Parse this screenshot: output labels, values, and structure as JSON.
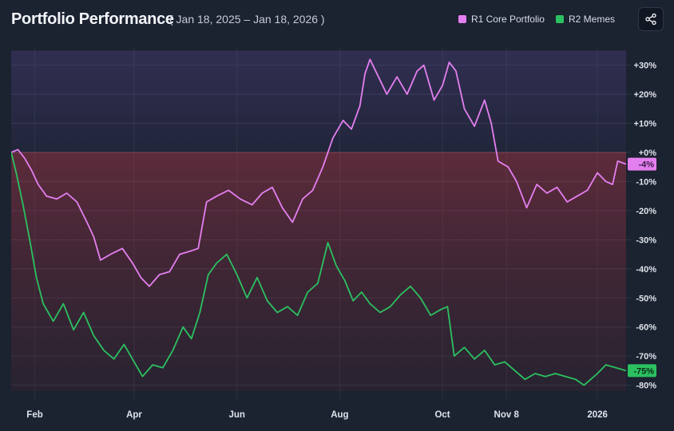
{
  "header": {
    "title": "Portfolio Performance",
    "date_range": "( Jan 18, 2025 – Jan 18, 2026 )",
    "share_icon": "share-icon"
  },
  "chart_data": {
    "type": "line",
    "title": "Portfolio Performance",
    "subtitle": "( Jan 18, 2025 – Jan 18, 2026 )",
    "x_range": [
      "2025-01-18",
      "2026-01-18"
    ],
    "ylim": [
      -82,
      35
    ],
    "y_unit": "%",
    "y_ticks": [
      30,
      20,
      10,
      0,
      -10,
      -20,
      -30,
      -40,
      -50,
      -60,
      -70,
      -80
    ],
    "y_tick_labels": [
      "+30%",
      "+20%",
      "+10%",
      "+0%",
      "-10%",
      "-20%",
      "-30%",
      "-40%",
      "-50%",
      "-60%",
      "-70%",
      "-80%"
    ],
    "x_ticks": [
      "2025-02-01",
      "2025-04-01",
      "2025-06-01",
      "2025-08-01",
      "2025-10-01",
      "2025-11-08",
      "2026-01-01"
    ],
    "x_tick_labels": [
      "Feb",
      "Apr",
      "Jun",
      "Aug",
      "Oct",
      "Nov 8",
      "2026"
    ],
    "grid": true,
    "legend_position": "top-right",
    "series": [
      {
        "name": "R1 Core Portfolio",
        "color": "#e47ff0",
        "end_label": "-4%",
        "points": [
          [
            "2025-01-18",
            0
          ],
          [
            "2025-01-22",
            1
          ],
          [
            "2025-01-26",
            -2
          ],
          [
            "2025-01-30",
            -6
          ],
          [
            "2025-02-03",
            -11
          ],
          [
            "2025-02-08",
            -15
          ],
          [
            "2025-02-14",
            -16
          ],
          [
            "2025-02-20",
            -14
          ],
          [
            "2025-02-26",
            -17
          ],
          [
            "2025-03-04",
            -24
          ],
          [
            "2025-03-08",
            -29
          ],
          [
            "2025-03-12",
            -37
          ],
          [
            "2025-03-18",
            -35
          ],
          [
            "2025-03-25",
            -33
          ],
          [
            "2025-03-31",
            -38
          ],
          [
            "2025-04-05",
            -43
          ],
          [
            "2025-04-10",
            -46
          ],
          [
            "2025-04-16",
            -42
          ],
          [
            "2025-04-22",
            -41
          ],
          [
            "2025-04-28",
            -35
          ],
          [
            "2025-05-04",
            -34
          ],
          [
            "2025-05-09",
            -33
          ],
          [
            "2025-05-14",
            -17
          ],
          [
            "2025-05-20",
            -15
          ],
          [
            "2025-05-27",
            -13
          ],
          [
            "2025-06-03",
            -16
          ],
          [
            "2025-06-10",
            -18
          ],
          [
            "2025-06-16",
            -14
          ],
          [
            "2025-06-22",
            -12
          ],
          [
            "2025-06-28",
            -19
          ],
          [
            "2025-07-04",
            -24
          ],
          [
            "2025-07-10",
            -16
          ],
          [
            "2025-07-16",
            -13
          ],
          [
            "2025-07-22",
            -5
          ],
          [
            "2025-07-28",
            5
          ],
          [
            "2025-08-03",
            11
          ],
          [
            "2025-08-08",
            8
          ],
          [
            "2025-08-13",
            16
          ],
          [
            "2025-08-16",
            27
          ],
          [
            "2025-08-19",
            32
          ],
          [
            "2025-08-24",
            26
          ],
          [
            "2025-08-29",
            20
          ],
          [
            "2025-09-04",
            26
          ],
          [
            "2025-09-10",
            20
          ],
          [
            "2025-09-16",
            28
          ],
          [
            "2025-09-20",
            30
          ],
          [
            "2025-09-26",
            18
          ],
          [
            "2025-10-01",
            23
          ],
          [
            "2025-10-05",
            31
          ],
          [
            "2025-10-09",
            28
          ],
          [
            "2025-10-14",
            15
          ],
          [
            "2025-10-20",
            9
          ],
          [
            "2025-10-26",
            18
          ],
          [
            "2025-10-30",
            10
          ],
          [
            "2025-11-03",
            -3
          ],
          [
            "2025-11-09",
            -5
          ],
          [
            "2025-11-14",
            -10
          ],
          [
            "2025-11-20",
            -19
          ],
          [
            "2025-11-26",
            -11
          ],
          [
            "2025-12-02",
            -14
          ],
          [
            "2025-12-08",
            -12
          ],
          [
            "2025-12-14",
            -17
          ],
          [
            "2025-12-20",
            -15
          ],
          [
            "2025-12-26",
            -13
          ],
          [
            "2026-01-01",
            -7
          ],
          [
            "2026-01-06",
            -10
          ],
          [
            "2026-01-10",
            -11
          ],
          [
            "2026-01-13",
            -3
          ],
          [
            "2026-01-18",
            -4
          ]
        ]
      },
      {
        "name": "R2 Memes",
        "color": "#2bc160",
        "end_label": "-75%",
        "points": [
          [
            "2025-01-18",
            0
          ],
          [
            "2025-01-21",
            -7
          ],
          [
            "2025-01-25",
            -18
          ],
          [
            "2025-01-29",
            -30
          ],
          [
            "2025-02-02",
            -43
          ],
          [
            "2025-02-06",
            -52
          ],
          [
            "2025-02-12",
            -58
          ],
          [
            "2025-02-18",
            -52
          ],
          [
            "2025-02-24",
            -61
          ],
          [
            "2025-03-02",
            -55
          ],
          [
            "2025-03-08",
            -63
          ],
          [
            "2025-03-14",
            -68
          ],
          [
            "2025-03-20",
            -71
          ],
          [
            "2025-03-26",
            -66
          ],
          [
            "2025-04-01",
            -72
          ],
          [
            "2025-04-06",
            -77
          ],
          [
            "2025-04-12",
            -73
          ],
          [
            "2025-04-18",
            -74
          ],
          [
            "2025-04-24",
            -68
          ],
          [
            "2025-04-30",
            -60
          ],
          [
            "2025-05-05",
            -64
          ],
          [
            "2025-05-10",
            -55
          ],
          [
            "2025-05-15",
            -42
          ],
          [
            "2025-05-20",
            -38
          ],
          [
            "2025-05-26",
            -35
          ],
          [
            "2025-06-01",
            -42
          ],
          [
            "2025-06-07",
            -50
          ],
          [
            "2025-06-13",
            -43
          ],
          [
            "2025-06-19",
            -51
          ],
          [
            "2025-06-25",
            -55
          ],
          [
            "2025-07-01",
            -53
          ],
          [
            "2025-07-07",
            -56
          ],
          [
            "2025-07-13",
            -48
          ],
          [
            "2025-07-19",
            -45
          ],
          [
            "2025-07-25",
            -31
          ],
          [
            "2025-07-30",
            -39
          ],
          [
            "2025-08-04",
            -44
          ],
          [
            "2025-08-09",
            -51
          ],
          [
            "2025-08-14",
            -48
          ],
          [
            "2025-08-19",
            -52
          ],
          [
            "2025-08-25",
            -55
          ],
          [
            "2025-08-31",
            -53
          ],
          [
            "2025-09-06",
            -49
          ],
          [
            "2025-09-12",
            -46
          ],
          [
            "2025-09-18",
            -50
          ],
          [
            "2025-09-24",
            -56
          ],
          [
            "2025-09-30",
            -54
          ],
          [
            "2025-10-04",
            -53
          ],
          [
            "2025-10-08",
            -70
          ],
          [
            "2025-10-14",
            -67
          ],
          [
            "2025-10-20",
            -71
          ],
          [
            "2025-10-26",
            -68
          ],
          [
            "2025-11-01",
            -73
          ],
          [
            "2025-11-07",
            -72
          ],
          [
            "2025-11-13",
            -75
          ],
          [
            "2025-11-19",
            -78
          ],
          [
            "2025-11-25",
            -76
          ],
          [
            "2025-12-01",
            -77
          ],
          [
            "2025-12-07",
            -76
          ],
          [
            "2025-12-13",
            -77
          ],
          [
            "2025-12-19",
            -78
          ],
          [
            "2025-12-24",
            -80
          ],
          [
            "2025-12-28",
            -78
          ],
          [
            "2026-01-01",
            -76
          ],
          [
            "2026-01-06",
            -73
          ],
          [
            "2026-01-12",
            -74
          ],
          [
            "2026-01-18",
            -75
          ]
        ]
      }
    ]
  }
}
